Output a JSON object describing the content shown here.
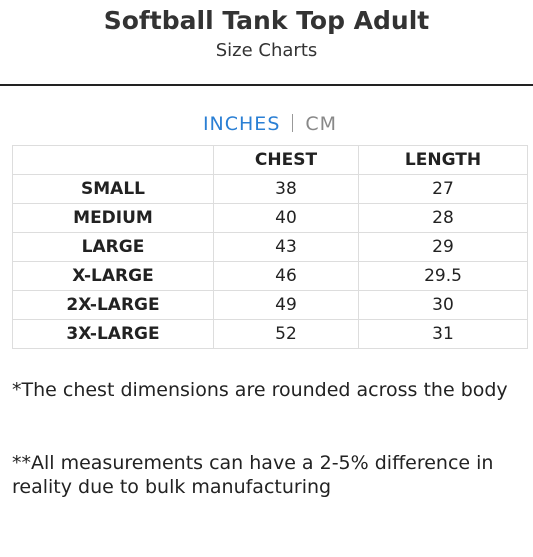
{
  "header": {
    "title": "Softball Tank Top Adult",
    "subtitle": "Size Charts"
  },
  "units": [
    "INCHES",
    "CM"
  ],
  "table": {
    "columns": [
      "CHEST",
      "LENGTH"
    ],
    "rows": [
      [
        "SMALL",
        38,
        27
      ],
      [
        "MEDIUM",
        40,
        28
      ],
      [
        "LARGE",
        43,
        29
      ],
      [
        "X-LARGE",
        46,
        29.5
      ],
      [
        "2X-LARGE",
        49,
        30
      ],
      [
        "3X-LARGE",
        52,
        31
      ]
    ]
  },
  "notes": [
    "*The chest dimensions are rounded across the body",
    "**All measurements can have a 2-5% difference in reality due to bulk manufacturing"
  ]
}
